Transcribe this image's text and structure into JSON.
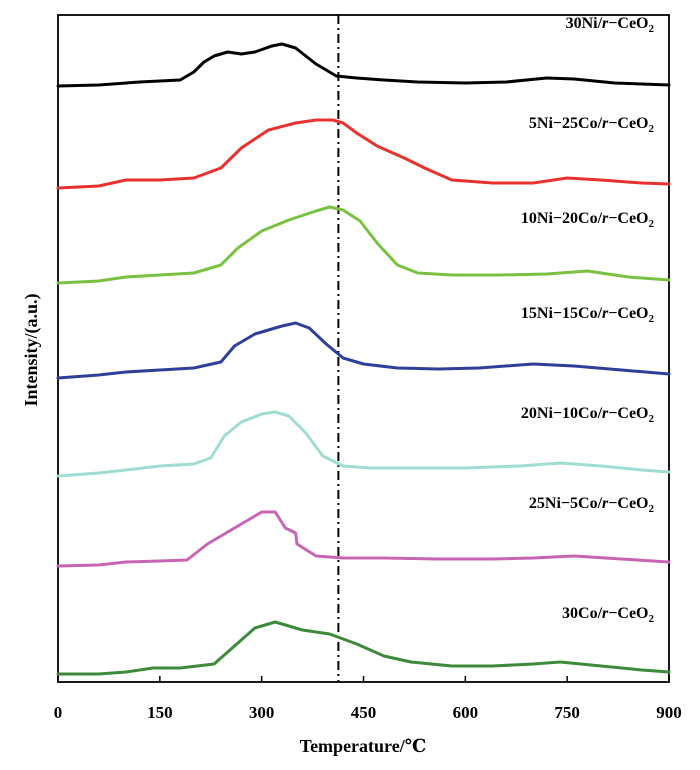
{
  "chart_data": {
    "type": "line",
    "title": "",
    "xlabel": "Temperature/℃",
    "ylabel": "Intensity/(a.u.)",
    "xlim": [
      0,
      900
    ],
    "x_ticks": [
      "0",
      "150",
      "300",
      "450",
      "600",
      "750",
      "900"
    ],
    "y_ticks_shown": false,
    "grid": false,
    "legend": "inline labels above each curve (right side)",
    "reference_line": {
      "x": 413,
      "style": "dash-dot",
      "color": "#000000"
    },
    "series": [
      {
        "name": "30Ni/r-CeO2",
        "label_parts": [
          "30Ni/",
          "r",
          "−CeO",
          "2"
        ],
        "color": "#000000",
        "offset": 590,
        "points": [
          [
            0,
            2
          ],
          [
            60,
            3
          ],
          [
            120,
            6
          ],
          [
            180,
            8
          ],
          [
            200,
            16
          ],
          [
            215,
            26
          ],
          [
            230,
            32
          ],
          [
            250,
            36
          ],
          [
            270,
            34
          ],
          [
            290,
            36
          ],
          [
            315,
            42
          ],
          [
            330,
            44
          ],
          [
            350,
            40
          ],
          [
            380,
            24
          ],
          [
            410,
            12
          ],
          [
            440,
            10
          ],
          [
            480,
            8
          ],
          [
            530,
            6
          ],
          [
            600,
            5
          ],
          [
            660,
            6
          ],
          [
            720,
            10
          ],
          [
            760,
            9
          ],
          [
            820,
            5
          ],
          [
            900,
            3
          ]
        ]
      },
      {
        "name": "5Ni-25Co/r-CeO2",
        "label_parts": [
          "5Ni−25Co/",
          "r",
          "−CeO",
          "2"
        ],
        "color": "#e8322f",
        "offset": 490,
        "points": [
          [
            0,
            0
          ],
          [
            60,
            2
          ],
          [
            100,
            8
          ],
          [
            150,
            8
          ],
          [
            200,
            10
          ],
          [
            240,
            20
          ],
          [
            270,
            40
          ],
          [
            310,
            58
          ],
          [
            350,
            65
          ],
          [
            380,
            68
          ],
          [
            405,
            68
          ],
          [
            420,
            65
          ],
          [
            440,
            55
          ],
          [
            470,
            42
          ],
          [
            510,
            30
          ],
          [
            540,
            20
          ],
          [
            580,
            8
          ],
          [
            640,
            5
          ],
          [
            700,
            5
          ],
          [
            750,
            10
          ],
          [
            800,
            8
          ],
          [
            860,
            5
          ],
          [
            900,
            4
          ]
        ]
      },
      {
        "name": "10Ni-20Co/r-CeO2",
        "label_parts": [
          "10Ni−20Co/",
          "r",
          "−CeO",
          "2"
        ],
        "color": "#7ac142",
        "offset": 395,
        "points": [
          [
            0,
            0
          ],
          [
            60,
            2
          ],
          [
            100,
            6
          ],
          [
            150,
            8
          ],
          [
            200,
            10
          ],
          [
            240,
            18
          ],
          [
            265,
            35
          ],
          [
            300,
            52
          ],
          [
            340,
            63
          ],
          [
            380,
            72
          ],
          [
            400,
            76
          ],
          [
            420,
            73
          ],
          [
            445,
            62
          ],
          [
            470,
            40
          ],
          [
            500,
            18
          ],
          [
            530,
            10
          ],
          [
            580,
            8
          ],
          [
            650,
            8
          ],
          [
            720,
            9
          ],
          [
            780,
            12
          ],
          [
            840,
            6
          ],
          [
            900,
            3
          ]
        ]
      },
      {
        "name": "15Ni-15Co/r-CeO2",
        "label_parts": [
          "15Ni−15Co/",
          "r",
          "−CeO",
          "2"
        ],
        "color": "#2e3f99",
        "offset": 300,
        "points": [
          [
            0,
            0
          ],
          [
            60,
            3
          ],
          [
            100,
            6
          ],
          [
            150,
            8
          ],
          [
            200,
            10
          ],
          [
            240,
            16
          ],
          [
            260,
            32
          ],
          [
            290,
            44
          ],
          [
            330,
            52
          ],
          [
            350,
            55
          ],
          [
            370,
            50
          ],
          [
            395,
            34
          ],
          [
            420,
            20
          ],
          [
            450,
            14
          ],
          [
            500,
            10
          ],
          [
            560,
            9
          ],
          [
            620,
            10
          ],
          [
            700,
            14
          ],
          [
            760,
            12
          ],
          [
            830,
            8
          ],
          [
            900,
            4
          ]
        ]
      },
      {
        "name": "20Ni-10Co/r-CeO2",
        "label_parts": [
          "20Ni−10Co/",
          "r",
          "−CeO",
          "2"
        ],
        "color": "#9fdcd3",
        "offset": 200,
        "points": [
          [
            0,
            2
          ],
          [
            60,
            5
          ],
          [
            100,
            8
          ],
          [
            150,
            12
          ],
          [
            200,
            14
          ],
          [
            225,
            20
          ],
          [
            245,
            42
          ],
          [
            270,
            56
          ],
          [
            300,
            64
          ],
          [
            320,
            66
          ],
          [
            340,
            62
          ],
          [
            365,
            45
          ],
          [
            390,
            22
          ],
          [
            420,
            12
          ],
          [
            460,
            10
          ],
          [
            520,
            10
          ],
          [
            600,
            10
          ],
          [
            680,
            12
          ],
          [
            740,
            15
          ],
          [
            800,
            12
          ],
          [
            860,
            8
          ],
          [
            900,
            6
          ]
        ]
      },
      {
        "name": "25Ni-5Co/r-CeO2",
        "label_parts": [
          "25Ni−5Co/",
          "r",
          "−CeO",
          "2"
        ],
        "color": "#c864b4",
        "offset": 110,
        "points": [
          [
            0,
            2
          ],
          [
            60,
            3
          ],
          [
            100,
            6
          ],
          [
            150,
            7
          ],
          [
            190,
            8
          ],
          [
            220,
            24
          ],
          [
            250,
            36
          ],
          [
            280,
            48
          ],
          [
            300,
            56
          ],
          [
            320,
            56
          ],
          [
            335,
            40
          ],
          [
            350,
            35
          ],
          [
            352,
            24
          ],
          [
            380,
            12
          ],
          [
            420,
            10
          ],
          [
            480,
            10
          ],
          [
            560,
            9
          ],
          [
            640,
            9
          ],
          [
            700,
            10
          ],
          [
            760,
            12
          ],
          [
            830,
            9
          ],
          [
            900,
            6
          ]
        ]
      },
      {
        "name": "30Co/r-CeO2",
        "label_parts": [
          "30Co/",
          "r",
          "−CeO",
          "2"
        ],
        "color": "#3c8a3a",
        "offset": 0,
        "points": [
          [
            0,
            4
          ],
          [
            60,
            4
          ],
          [
            100,
            6
          ],
          [
            140,
            10
          ],
          [
            180,
            10
          ],
          [
            230,
            14
          ],
          [
            260,
            32
          ],
          [
            290,
            50
          ],
          [
            320,
            56
          ],
          [
            340,
            52
          ],
          [
            360,
            48
          ],
          [
            400,
            44
          ],
          [
            440,
            34
          ],
          [
            480,
            22
          ],
          [
            520,
            16
          ],
          [
            580,
            12
          ],
          [
            640,
            12
          ],
          [
            700,
            14
          ],
          [
            740,
            16
          ],
          [
            800,
            12
          ],
          [
            860,
            8
          ],
          [
            900,
            6
          ]
        ]
      }
    ]
  }
}
